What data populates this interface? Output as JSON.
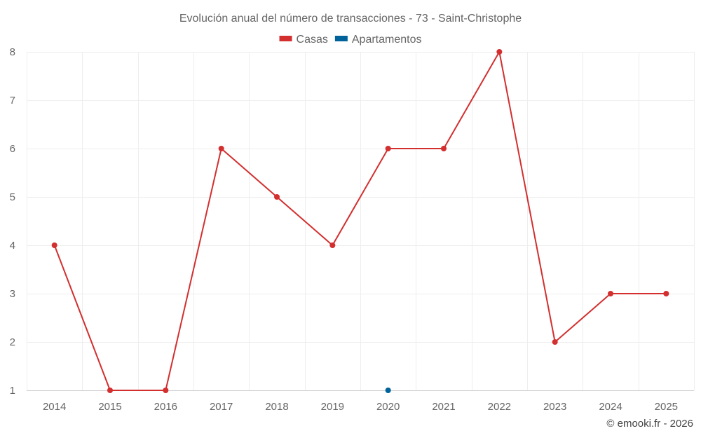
{
  "chart_data": {
    "type": "line",
    "title": "Evolución anual del número de transacciones - 73 - Saint-Christophe",
    "categories": [
      "2014",
      "2015",
      "2016",
      "2017",
      "2018",
      "2019",
      "2020",
      "2021",
      "2022",
      "2023",
      "2024",
      "2025"
    ],
    "ylim": [
      1,
      8
    ],
    "yticks": [
      1,
      2,
      3,
      4,
      5,
      6,
      7,
      8
    ],
    "grid": true,
    "legend_position": "top-center",
    "series": [
      {
        "name": "Casas",
        "color": "#d32f2f",
        "values": [
          4,
          1,
          1,
          6,
          5,
          4,
          6,
          6,
          8,
          2,
          3,
          3
        ]
      },
      {
        "name": "Apartamentos",
        "color": "#00629b",
        "values": [
          null,
          null,
          null,
          null,
          null,
          null,
          1,
          null,
          null,
          null,
          null,
          null
        ]
      }
    ]
  },
  "credit": "© emooki.fr - 2026"
}
